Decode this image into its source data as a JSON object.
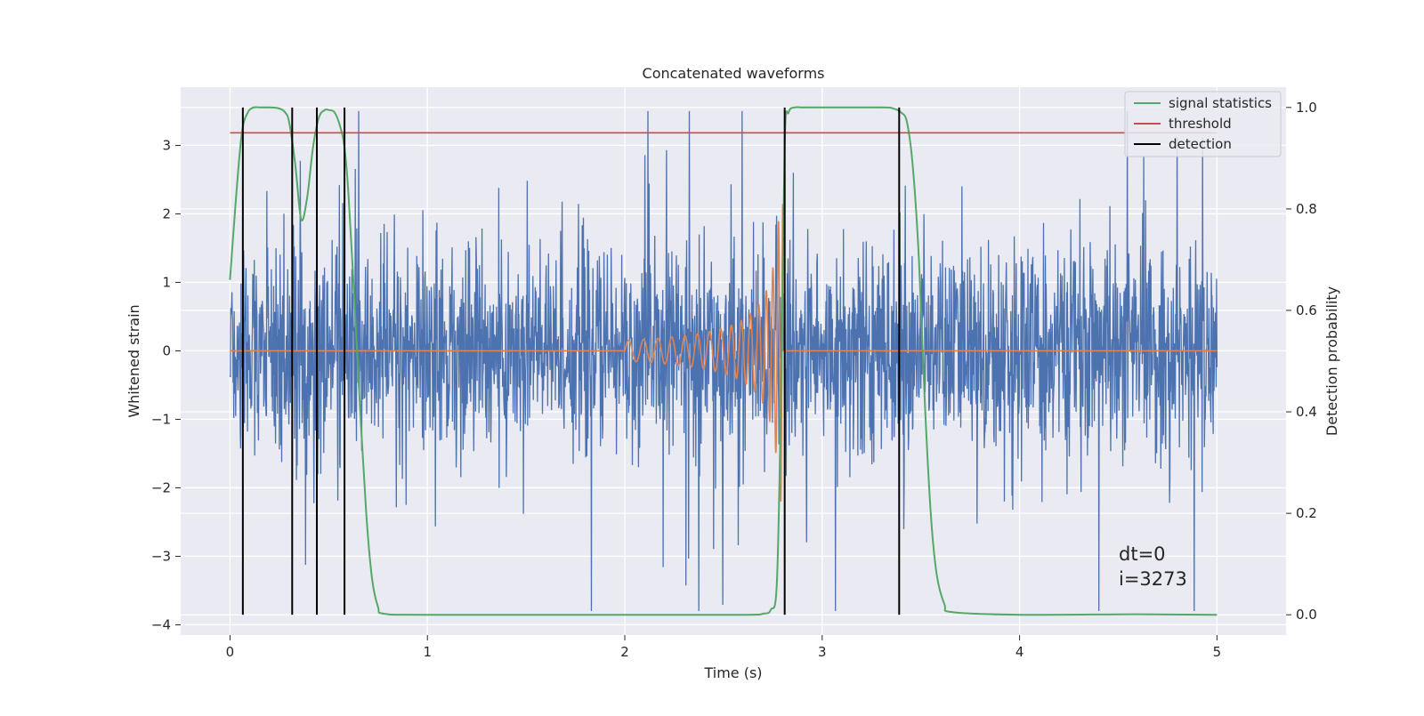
{
  "chart_data": {
    "type": "line",
    "title": "Concatenated waveforms",
    "xlabel": "Time (s)",
    "ylabel_left": "Whitened strain",
    "ylabel_right": "Detection probability",
    "xlim": [
      -0.25,
      5.35
    ],
    "ylim_left": [
      -4.15,
      3.85
    ],
    "ylim_right": [
      -0.04,
      1.04
    ],
    "x_ticks": [
      0,
      1,
      2,
      3,
      4,
      5
    ],
    "x_tick_labels": [
      "0",
      "1",
      "2",
      "3",
      "4",
      "5"
    ],
    "y_left_ticks": [
      -4,
      -3,
      -2,
      -1,
      0,
      1,
      2,
      3
    ],
    "y_left_tick_labels": [
      "−4",
      "−3",
      "−2",
      "−1",
      "0",
      "1",
      "2",
      "3"
    ],
    "y_right_ticks": [
      0.0,
      0.2,
      0.4,
      0.6,
      0.8,
      1.0
    ],
    "y_right_tick_labels": [
      "0.0",
      "0.2",
      "0.4",
      "0.6",
      "0.8",
      "1.0"
    ],
    "grid": true,
    "legend_position": "top-right",
    "series": [
      {
        "name": "whitened strain data",
        "axis": "left",
        "color": "#4c72b0",
        "x_range": [
          0,
          5
        ],
        "typical_amplitude": 1.2,
        "peak_range": [
          -3.8,
          3.5
        ],
        "in_legend": false
      },
      {
        "name": "injected chirp waveform",
        "axis": "left",
        "color": "#dd8452",
        "x_range": [
          0,
          5
        ],
        "chirp_start": 2.0,
        "chirp_end": 2.8,
        "start_amplitude": 0.15,
        "end_amplitude": 2.2,
        "in_legend": false
      },
      {
        "name": "signal statistics",
        "axis": "right",
        "color": "#55a868",
        "x": [
          0.0,
          0.03,
          0.06,
          0.09,
          0.12,
          0.15,
          0.2,
          0.25,
          0.28,
          0.3,
          0.33,
          0.36,
          0.39,
          0.42,
          0.45,
          0.48,
          0.5,
          0.53,
          0.56,
          0.58,
          0.6,
          0.63,
          0.66,
          0.69,
          0.72,
          0.75,
          0.78,
          1.0,
          2.0,
          2.6,
          2.7,
          2.74,
          2.77,
          2.79,
          2.81,
          2.83,
          2.86,
          2.9,
          3.0,
          3.3,
          3.36,
          3.4,
          3.43,
          3.46,
          3.49,
          3.52,
          3.55,
          3.58,
          3.62,
          3.66,
          4.0,
          4.6,
          5.0
        ],
        "y": [
          0.66,
          0.82,
          0.95,
          0.99,
          1.0,
          1.0,
          1.0,
          0.998,
          0.99,
          0.97,
          0.89,
          0.78,
          0.82,
          0.92,
          0.98,
          0.995,
          0.995,
          0.99,
          0.96,
          0.92,
          0.83,
          0.62,
          0.4,
          0.2,
          0.07,
          0.015,
          0.002,
          0.0,
          0.0,
          0.0,
          0.002,
          0.01,
          0.06,
          0.4,
          0.93,
          0.99,
          1.0,
          1.0,
          1.0,
          1.0,
          0.998,
          0.99,
          0.97,
          0.88,
          0.7,
          0.42,
          0.2,
          0.08,
          0.02,
          0.005,
          0.0,
          0.001,
          0.0
        ],
        "in_legend": true
      },
      {
        "name": "threshold",
        "axis": "right",
        "color": "#c44e52",
        "x": [
          0,
          5
        ],
        "y": [
          0.95,
          0.95
        ],
        "in_legend": true
      },
      {
        "name": "detection",
        "axis": "right",
        "color": "#000000",
        "type": "vlines",
        "x": [
          0.065,
          0.315,
          0.44,
          0.58,
          2.81,
          3.39
        ],
        "y_range": [
          0.0,
          1.0
        ],
        "in_legend": true
      }
    ],
    "annotations": [
      "dt=0",
      "i=3273"
    ]
  }
}
